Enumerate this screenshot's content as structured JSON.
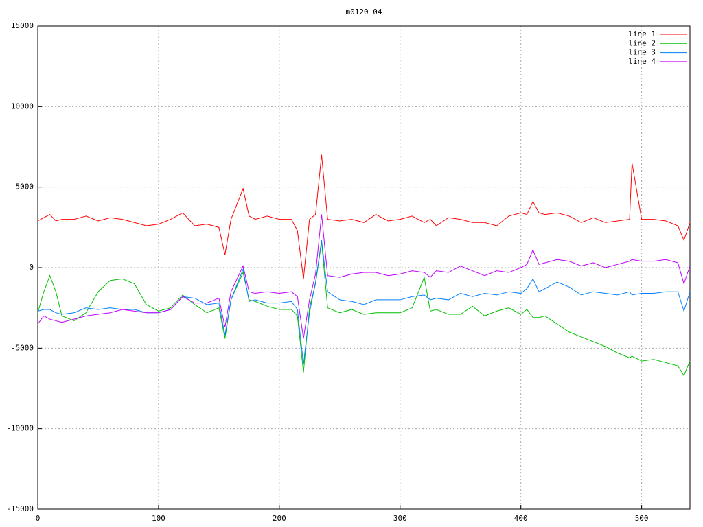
{
  "chart_data": {
    "type": "line",
    "title": "m0120_04",
    "x": [
      0,
      5,
      10,
      15,
      20,
      30,
      40,
      50,
      60,
      70,
      80,
      90,
      100,
      110,
      120,
      130,
      140,
      150,
      155,
      160,
      170,
      175,
      180,
      190,
      200,
      210,
      215,
      220,
      225,
      230,
      235,
      240,
      250,
      260,
      270,
      280,
      290,
      300,
      310,
      320,
      325,
      330,
      340,
      350,
      360,
      370,
      380,
      390,
      400,
      405,
      410,
      415,
      420,
      430,
      440,
      450,
      460,
      470,
      480,
      490,
      492,
      500,
      510,
      520,
      530,
      535,
      540
    ],
    "series": [
      {
        "name": "line 1",
        "color": "#ff0000",
        "values": [
          2900,
          3100,
          3300,
          2900,
          3000,
          3000,
          3200,
          2900,
          3100,
          3000,
          2800,
          2600,
          2700,
          3000,
          3400,
          2600,
          2700,
          2500,
          800,
          3000,
          4900,
          3200,
          3000,
          3200,
          3000,
          3000,
          2300,
          -700,
          3000,
          3300,
          7000,
          3000,
          2900,
          3000,
          2800,
          3300,
          2900,
          3000,
          3200,
          2800,
          3000,
          2600,
          3100,
          3000,
          2800,
          2800,
          2600,
          3200,
          3400,
          3300,
          4100,
          3400,
          3300,
          3400,
          3200,
          2800,
          3100,
          2800,
          2900,
          3000,
          6500,
          3000,
          3000,
          2900,
          2600,
          1700,
          2800
        ]
      },
      {
        "name": "line 2",
        "color": "#00c000",
        "values": [
          -2800,
          -1500,
          -500,
          -1500,
          -3000,
          -3300,
          -2800,
          -1500,
          -800,
          -700,
          -1000,
          -2300,
          -2700,
          -2500,
          -1700,
          -2300,
          -2800,
          -2500,
          -4400,
          -2000,
          -300,
          -2000,
          -2100,
          -2400,
          -2600,
          -2600,
          -3000,
          -6500,
          -2500,
          -1000,
          1600,
          -2500,
          -2800,
          -2600,
          -2900,
          -2800,
          -2800,
          -2800,
          -2500,
          -600,
          -2700,
          -2600,
          -2900,
          -2900,
          -2400,
          -3000,
          -2700,
          -2500,
          -2900,
          -2600,
          -3100,
          -3100,
          -3000,
          -3500,
          -4000,
          -4300,
          -4600,
          -4900,
          -5300,
          -5600,
          -5500,
          -5800,
          -5700,
          -5900,
          -6100,
          -6700,
          -5800
        ]
      },
      {
        "name": "line 3",
        "color": "#0080ff",
        "values": [
          -2700,
          -2600,
          -2600,
          -2800,
          -2900,
          -2800,
          -2500,
          -2600,
          -2500,
          -2600,
          -2600,
          -2800,
          -2800,
          -2600,
          -1800,
          -1900,
          -2300,
          -2200,
          -4200,
          -2000,
          -100,
          -2100,
          -2000,
          -2200,
          -2200,
          -2100,
          -2600,
          -6000,
          -2800,
          -900,
          1700,
          -1500,
          -2000,
          -2100,
          -2300,
          -2000,
          -2000,
          -2000,
          -1800,
          -1700,
          -2000,
          -1900,
          -2000,
          -1600,
          -1800,
          -1600,
          -1700,
          -1500,
          -1600,
          -1300,
          -700,
          -1500,
          -1300,
          -900,
          -1200,
          -1700,
          -1500,
          -1600,
          -1700,
          -1500,
          -1700,
          -1600,
          -1600,
          -1500,
          -1500,
          -2700,
          -1500
        ]
      },
      {
        "name": "line 4",
        "color": "#c000ff",
        "values": [
          -3500,
          -3000,
          -3200,
          -3300,
          -3400,
          -3200,
          -3000,
          -2900,
          -2800,
          -2600,
          -2700,
          -2800,
          -2800,
          -2600,
          -1800,
          -2200,
          -2200,
          -1900,
          -3700,
          -1500,
          100,
          -1500,
          -1600,
          -1500,
          -1600,
          -1500,
          -1800,
          -4400,
          -2000,
          -400,
          3300,
          -500,
          -600,
          -400,
          -300,
          -300,
          -500,
          -400,
          -200,
          -300,
          -600,
          -200,
          -300,
          100,
          -200,
          -500,
          -200,
          -300,
          0,
          200,
          1100,
          200,
          300,
          500,
          400,
          100,
          300,
          0,
          200,
          400,
          500,
          400,
          400,
          500,
          300,
          -1000,
          100
        ]
      }
    ],
    "xlim": [
      0,
      540
    ],
    "xticks": [
      0,
      100,
      200,
      300,
      400,
      500
    ],
    "ylim": [
      -15000,
      15000
    ],
    "yticks": [
      -15000,
      -10000,
      -5000,
      0,
      5000,
      10000,
      15000
    ],
    "grid": true
  }
}
